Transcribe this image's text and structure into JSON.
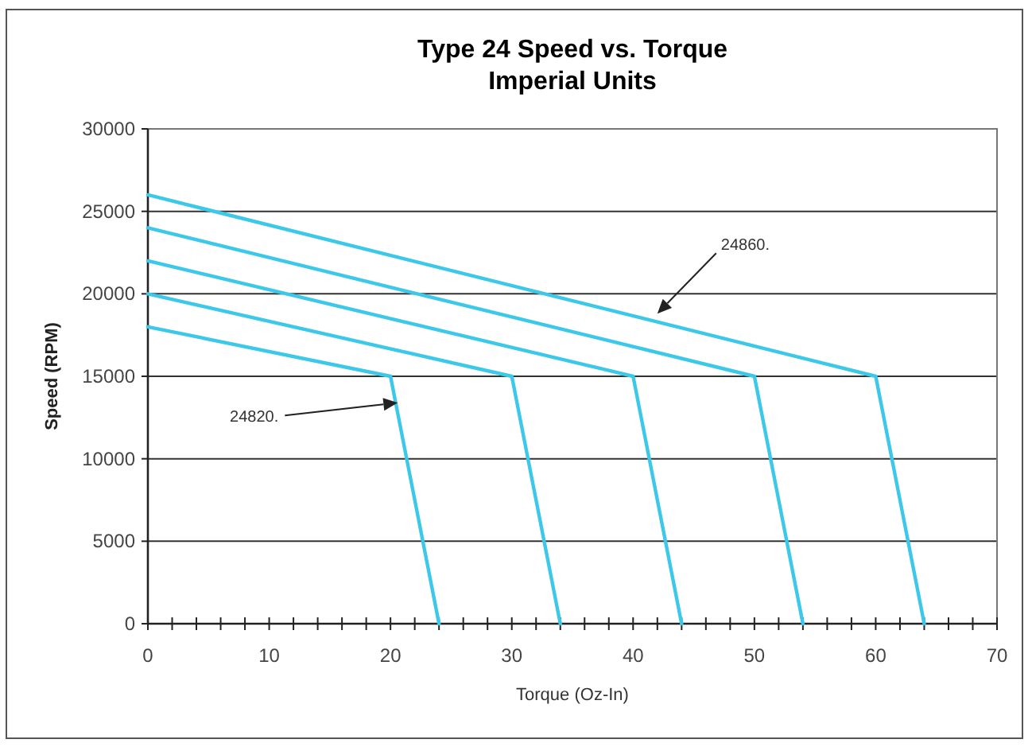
{
  "chart_data": {
    "type": "line",
    "title": "Type 24 Speed vs. Torque",
    "subtitle": "Imperial Units",
    "xlabel": "Torque (Oz-In)",
    "ylabel": "Speed (RPM)",
    "xlim": [
      0,
      70
    ],
    "ylim": [
      0,
      30000
    ],
    "xticks": [
      0,
      {
        "value": 2,
        "label": null
      },
      {
        "value": 4,
        "label": null
      },
      {
        "value": 6,
        "label": null
      },
      {
        "value": 8,
        "label": null
      },
      10,
      {
        "value": 12,
        "label": null
      },
      {
        "value": 14,
        "label": null
      },
      {
        "value": 16,
        "label": null
      },
      {
        "value": 18,
        "label": null
      },
      20,
      {
        "value": 22,
        "label": null
      },
      {
        "value": 24,
        "label": null
      },
      {
        "value": 26,
        "label": null
      },
      {
        "value": 28,
        "label": null
      },
      30,
      {
        "value": 32,
        "label": null
      },
      {
        "value": 34,
        "label": null
      },
      {
        "value": 36,
        "label": null
      },
      {
        "value": 38,
        "label": null
      },
      40,
      {
        "value": 42,
        "label": null
      },
      {
        "value": 44,
        "label": null
      },
      {
        "value": 46,
        "label": null
      },
      {
        "value": 48,
        "label": null
      },
      50,
      {
        "value": 52,
        "label": null
      },
      {
        "value": 54,
        "label": null
      },
      {
        "value": 56,
        "label": null
      },
      {
        "value": 58,
        "label": null
      },
      60,
      {
        "value": 62,
        "label": null
      },
      {
        "value": 64,
        "label": null
      },
      {
        "value": 66,
        "label": null
      },
      {
        "value": 68,
        "label": null
      },
      70
    ],
    "yticks": [
      0,
      5000,
      10000,
      15000,
      20000,
      25000,
      30000
    ],
    "grid": "y",
    "marker": "none",
    "line_style": "solid",
    "series": [
      {
        "color": "#3cc8e8",
        "x": [
          0,
          20,
          24
        ],
        "values": [
          18000,
          15000,
          0
        ]
      },
      {
        "color": "#3cc8e8",
        "x": [
          0,
          30,
          34
        ],
        "values": [
          20000,
          15000,
          0
        ]
      },
      {
        "color": "#3cc8e8",
        "x": [
          0,
          40,
          44
        ],
        "values": [
          22000,
          15000,
          0
        ]
      },
      {
        "color": "#3cc8e8",
        "x": [
          0,
          50,
          54
        ],
        "values": [
          24000,
          15000,
          0
        ]
      },
      {
        "color": "#3cc8e8",
        "x": [
          0,
          60,
          64
        ],
        "values": [
          26000,
          15000,
          0
        ]
      }
    ],
    "annotations": [
      {
        "text": "24820.",
        "x": 20.6,
        "y": 13400
      },
      {
        "text": "24860.",
        "x": 42,
        "y": 18800
      }
    ]
  }
}
